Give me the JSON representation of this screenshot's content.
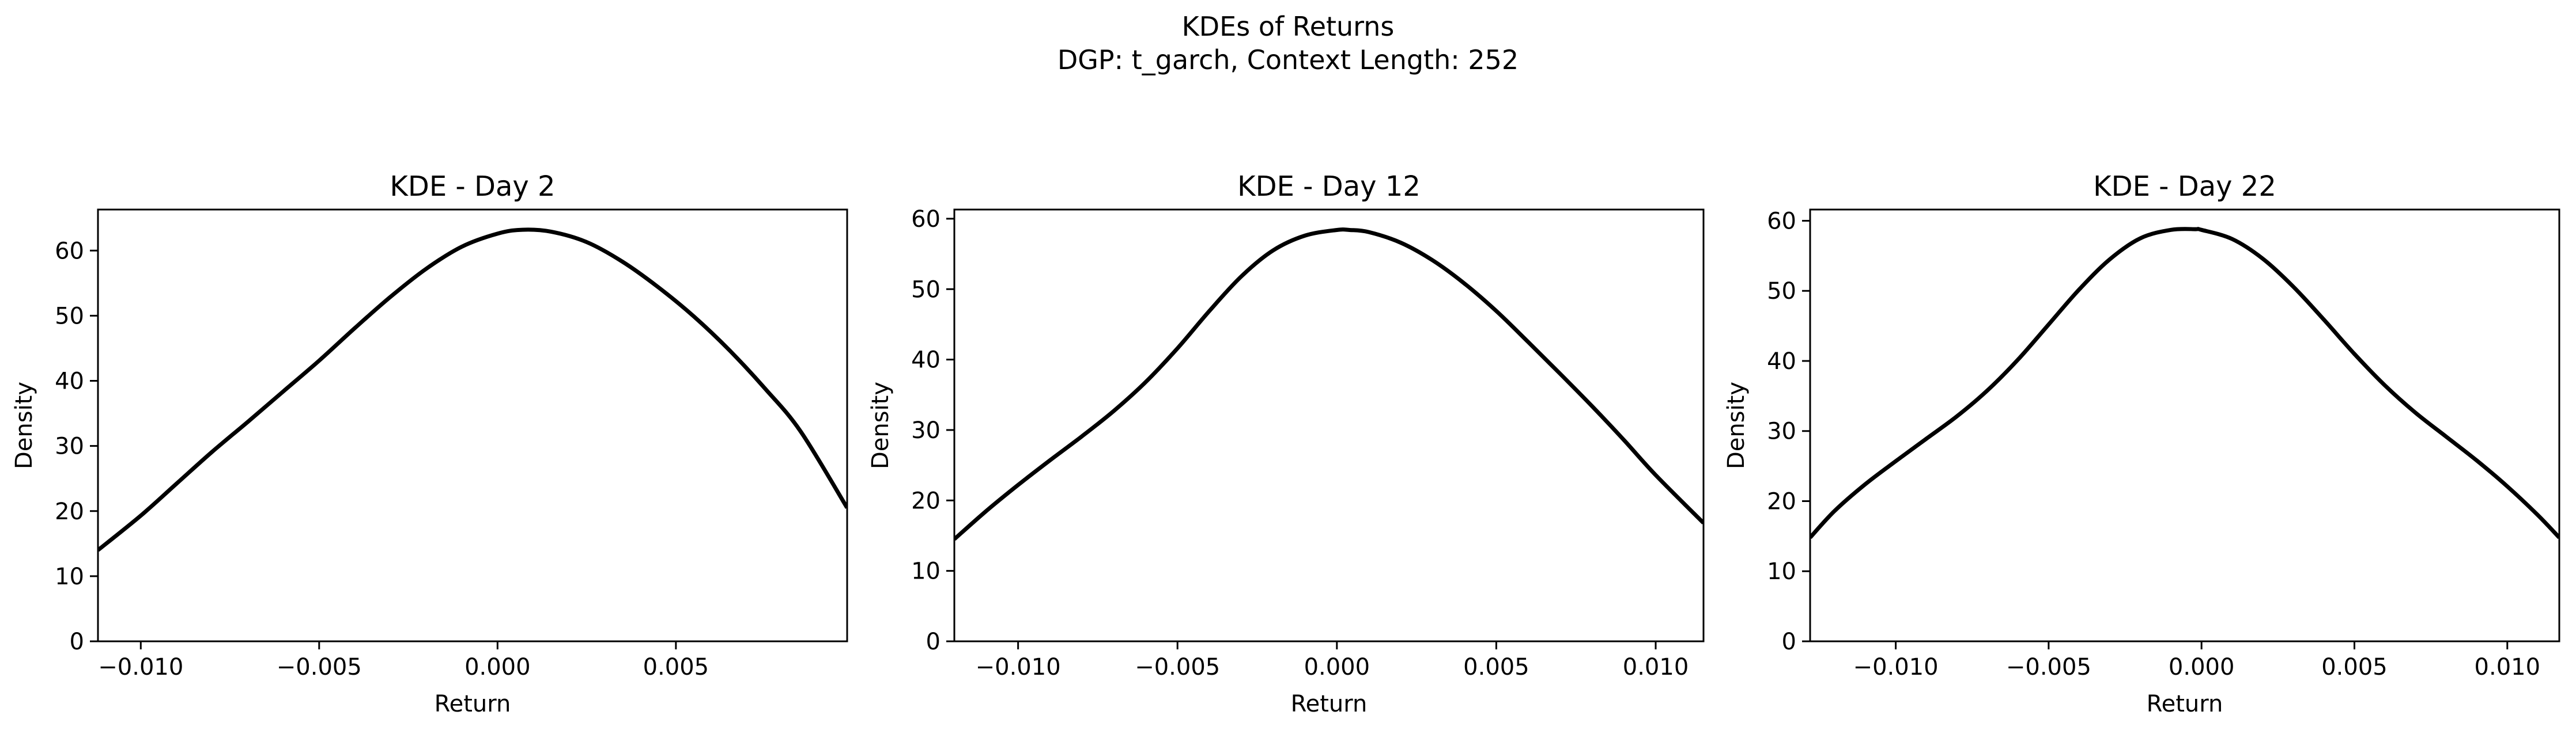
{
  "figure": {
    "title_line1": "KDEs of Returns",
    "title_line2": "DGP: t_garch, Context Length: 252"
  },
  "colors": {
    "line": "#000000",
    "axes": "#000000",
    "background": "#ffffff"
  },
  "chart_data": [
    {
      "type": "line",
      "title": "KDE - Day 2",
      "xlabel": "Return",
      "ylabel": "Density",
      "xlim": [
        -0.0112,
        0.0098
      ],
      "ylim": [
        0,
        66.3
      ],
      "xticks": [
        -0.01,
        -0.005,
        0.0,
        0.005
      ],
      "xtick_labels": [
        "−0.010",
        "−0.005",
        "0.000",
        "0.005"
      ],
      "yticks": [
        0,
        10,
        20,
        30,
        40,
        50,
        60
      ],
      "ytick_labels": [
        "0",
        "10",
        "20",
        "30",
        "40",
        "50",
        "60"
      ],
      "grid": false,
      "series": [
        {
          "x": [
            -0.0112,
            -0.01,
            -0.009,
            -0.008,
            -0.007,
            -0.006,
            -0.005,
            -0.004,
            -0.003,
            -0.002,
            -0.001,
            0.0,
            0.0007,
            0.0015,
            0.0025,
            0.0035,
            0.0045,
            0.0055,
            0.0065,
            0.0075,
            0.0085,
            0.0098
          ],
          "y": [
            14.0,
            19.3,
            24.2,
            29.1,
            33.7,
            38.4,
            43.1,
            48.1,
            52.9,
            57.2,
            60.6,
            62.6,
            63.2,
            62.9,
            61.3,
            58.3,
            54.4,
            49.9,
            44.7,
            38.8,
            32.2,
            20.5
          ]
        }
      ]
    },
    {
      "type": "line",
      "title": "KDE - Day 12",
      "xlabel": "Return",
      "ylabel": "Density",
      "xlim": [
        -0.012,
        0.0115
      ],
      "ylim": [
        0,
        61.3
      ],
      "xticks": [
        -0.01,
        -0.005,
        0.0,
        0.005,
        0.01
      ],
      "xtick_labels": [
        "−0.010",
        "−0.005",
        "0.000",
        "0.005",
        "0.010"
      ],
      "yticks": [
        0,
        10,
        20,
        30,
        40,
        50,
        60
      ],
      "ytick_labels": [
        "0",
        "10",
        "20",
        "30",
        "40",
        "50",
        "60"
      ],
      "grid": false,
      "series": [
        {
          "x": [
            -0.012,
            -0.011,
            -0.01,
            -0.009,
            -0.008,
            -0.007,
            -0.006,
            -0.005,
            -0.004,
            -0.003,
            -0.002,
            -0.001,
            0.0,
            0.0004,
            0.001,
            0.002,
            0.003,
            0.004,
            0.005,
            0.006,
            0.007,
            0.008,
            0.009,
            0.01,
            0.0115
          ],
          "y": [
            14.5,
            18.5,
            22.2,
            25.7,
            29.1,
            32.7,
            36.8,
            41.6,
            46.9,
            51.8,
            55.5,
            57.6,
            58.4,
            58.4,
            58.1,
            56.6,
            54.1,
            50.8,
            46.9,
            42.5,
            38.0,
            33.4,
            28.6,
            23.6,
            16.8
          ]
        }
      ]
    },
    {
      "type": "line",
      "title": "KDE - Day 22",
      "xlabel": "Return",
      "ylabel": "Density",
      "xlim": [
        -0.0128,
        0.0117
      ],
      "ylim": [
        0,
        61.6
      ],
      "xticks": [
        -0.01,
        -0.005,
        0.0,
        0.005,
        0.01
      ],
      "xtick_labels": [
        "−0.010",
        "−0.005",
        "0.000",
        "0.005",
        "0.010"
      ],
      "yticks": [
        0,
        10,
        20,
        30,
        40,
        50,
        60
      ],
      "ytick_labels": [
        "0",
        "10",
        "20",
        "30",
        "40",
        "50",
        "60"
      ],
      "grid": false,
      "series": [
        {
          "x": [
            -0.0128,
            -0.012,
            -0.011,
            -0.01,
            -0.009,
            -0.008,
            -0.007,
            -0.006,
            -0.005,
            -0.004,
            -0.003,
            -0.002,
            -0.001,
            -0.0002,
            0.0,
            0.001,
            0.002,
            0.003,
            0.004,
            0.005,
            0.006,
            0.007,
            0.008,
            0.009,
            0.01,
            0.011,
            0.0117
          ],
          "y": [
            14.8,
            18.6,
            22.4,
            25.7,
            28.9,
            32.1,
            35.8,
            40.2,
            45.2,
            50.2,
            54.5,
            57.5,
            58.7,
            58.8,
            58.7,
            57.4,
            54.6,
            50.6,
            45.9,
            41.0,
            36.5,
            32.6,
            29.2,
            25.8,
            22.1,
            18.0,
            14.8
          ]
        }
      ]
    }
  ]
}
